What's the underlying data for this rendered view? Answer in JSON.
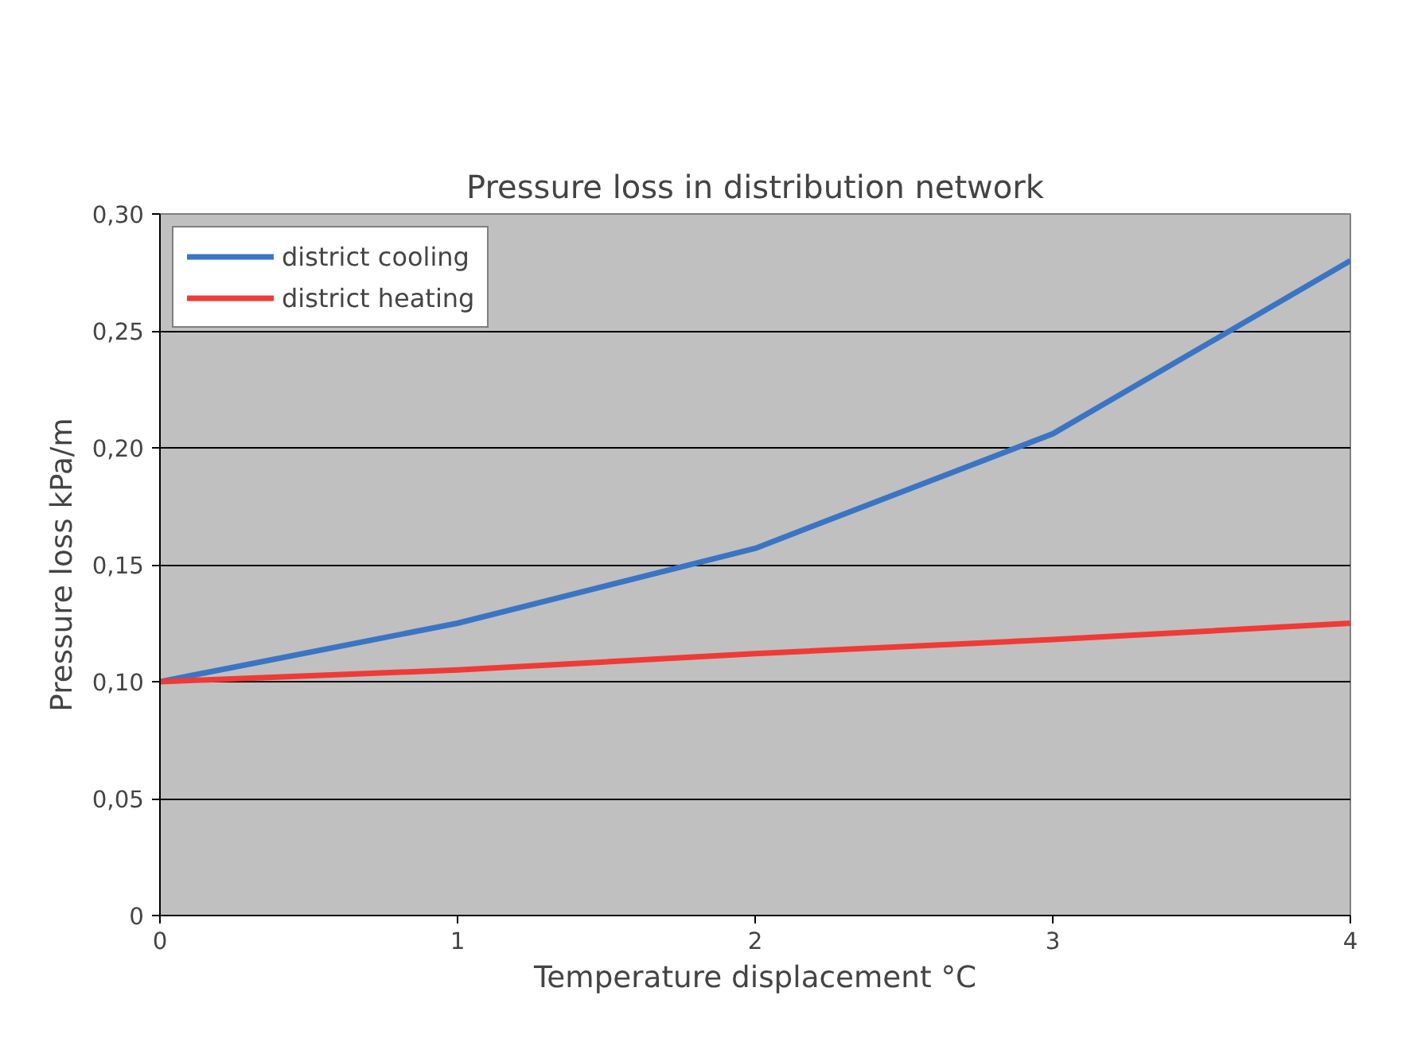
{
  "chart_data": {
    "type": "line",
    "title": "Pressure loss in distribution network",
    "xlabel": "Temperature displacement °C",
    "ylabel": "Pressure loss kPa/m",
    "x": [
      0,
      1,
      2,
      3,
      4
    ],
    "series": [
      {
        "name": "district cooling",
        "color": "#3a75c4",
        "values": [
          0.1,
          0.125,
          0.157,
          0.206,
          0.28
        ]
      },
      {
        "name": "district heating",
        "color": "#ef3a36",
        "values": [
          0.1,
          0.105,
          0.112,
          0.118,
          0.125
        ]
      }
    ],
    "xlim": [
      0,
      4
    ],
    "xticks": [
      0,
      1,
      2,
      3,
      4
    ],
    "ylim": [
      0,
      0.3
    ],
    "yticks": [
      0,
      {
        "value": 0.05,
        "label": "0,05"
      },
      {
        "value": 0.1,
        "label": "0,10"
      },
      {
        "value": 0.15,
        "label": "0,15"
      },
      {
        "value": 0.2,
        "label": "0,20"
      },
      {
        "value": 0.25,
        "label": "0,25"
      },
      {
        "value": 0.3,
        "label": "0,30"
      }
    ],
    "grid": "y",
    "legend": "top left",
    "marker": "none",
    "line_style": "solid"
  }
}
